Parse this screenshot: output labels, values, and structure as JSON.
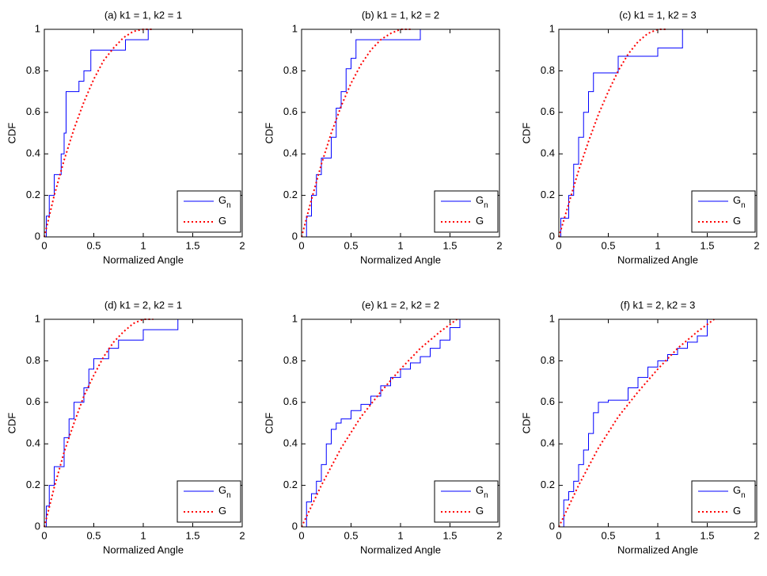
{
  "chart_data": [
    {
      "type": "line",
      "title": "(a) k1 = 1, k2 = 1",
      "xlabel": "Normalized Angle",
      "ylabel": "CDF",
      "xlim": [
        0,
        2
      ],
      "ylim": [
        0,
        1
      ],
      "xticks": [
        0,
        0.5,
        1,
        1.5,
        2
      ],
      "yticks": [
        0,
        0.2,
        0.4,
        0.6,
        0.8,
        1
      ],
      "legend": "lower right",
      "series": [
        {
          "name": "Gn",
          "color": "#0000ff",
          "style": "solid",
          "step": true,
          "x": [
            0,
            0.02,
            0.05,
            0.1,
            0.17,
            0.2,
            0.22,
            0.35,
            0.4,
            0.47,
            0.55,
            0.82,
            1.05,
            1.6
          ],
          "values": [
            0,
            0.1,
            0.2,
            0.3,
            0.4,
            0.5,
            0.7,
            0.75,
            0.8,
            0.9,
            0.9,
            0.95,
            1,
            1
          ]
        },
        {
          "name": "G",
          "color": "#ff0000",
          "style": "dotted",
          "step": false,
          "x": [
            0,
            0.1,
            0.2,
            0.3,
            0.4,
            0.5,
            0.6,
            0.7,
            0.8,
            0.9,
            1.0,
            1.1
          ],
          "values": [
            0,
            0.2,
            0.37,
            0.52,
            0.65,
            0.76,
            0.85,
            0.91,
            0.96,
            0.99,
            1,
            1
          ]
        }
      ]
    },
    {
      "type": "line",
      "title": "(b) k1 = 1, k2 = 2",
      "xlabel": "Normalized Angle",
      "ylabel": "CDF",
      "xlim": [
        0,
        2
      ],
      "ylim": [
        0,
        1
      ],
      "xticks": [
        0,
        0.5,
        1,
        1.5,
        2
      ],
      "yticks": [
        0,
        0.2,
        0.4,
        0.6,
        0.8,
        1
      ],
      "legend": "lower right",
      "series": [
        {
          "name": "Gn",
          "color": "#0000ff",
          "style": "solid",
          "step": true,
          "x": [
            0,
            0.05,
            0.1,
            0.15,
            0.2,
            0.3,
            0.35,
            0.4,
            0.45,
            0.5,
            0.55,
            1.2,
            1.6
          ],
          "values": [
            0,
            0.1,
            0.2,
            0.3,
            0.38,
            0.48,
            0.62,
            0.7,
            0.81,
            0.86,
            0.95,
            1,
            1
          ]
        },
        {
          "name": "G",
          "color": "#ff0000",
          "style": "dotted",
          "step": false,
          "x": [
            0,
            0.1,
            0.2,
            0.3,
            0.4,
            0.5,
            0.6,
            0.7,
            0.8,
            0.9,
            1.0,
            1.1
          ],
          "values": [
            0,
            0.18,
            0.35,
            0.5,
            0.63,
            0.74,
            0.83,
            0.9,
            0.95,
            0.98,
            1,
            1
          ]
        }
      ]
    },
    {
      "type": "line",
      "title": "(c) k1 = 1, k2 = 3",
      "xlabel": "Normalized Angle",
      "ylabel": "CDF",
      "xlim": [
        0,
        2
      ],
      "ylim": [
        0,
        1
      ],
      "xticks": [
        0,
        0.5,
        1,
        1.5,
        2
      ],
      "yticks": [
        0,
        0.2,
        0.4,
        0.6,
        0.8,
        1
      ],
      "legend": "lower right",
      "series": [
        {
          "name": "Gn",
          "color": "#0000ff",
          "style": "solid",
          "step": true,
          "x": [
            0,
            0.02,
            0.1,
            0.15,
            0.2,
            0.25,
            0.3,
            0.35,
            0.4,
            0.6,
            0.85,
            1.0,
            1.25,
            1.6
          ],
          "values": [
            0,
            0.09,
            0.2,
            0.35,
            0.48,
            0.6,
            0.7,
            0.79,
            0.79,
            0.87,
            0.87,
            0.91,
            1,
            1
          ]
        },
        {
          "name": "G",
          "color": "#ff0000",
          "style": "dotted",
          "step": false,
          "x": [
            0,
            0.1,
            0.2,
            0.3,
            0.4,
            0.5,
            0.6,
            0.7,
            0.8,
            0.9,
            1.0,
            1.1
          ],
          "values": [
            0,
            0.16,
            0.32,
            0.46,
            0.59,
            0.7,
            0.8,
            0.88,
            0.94,
            0.98,
            1,
            1
          ]
        }
      ]
    },
    {
      "type": "line",
      "title": "(d) k1 = 2, k2 = 1",
      "xlabel": "Normalized Angle",
      "ylabel": "CDF",
      "xlim": [
        0,
        2
      ],
      "ylim": [
        0,
        1
      ],
      "xticks": [
        0,
        0.5,
        1,
        1.5,
        2
      ],
      "yticks": [
        0,
        0.2,
        0.4,
        0.6,
        0.8,
        1
      ],
      "legend": "lower right",
      "series": [
        {
          "name": "Gn",
          "color": "#0000ff",
          "style": "solid",
          "step": true,
          "x": [
            0,
            0.02,
            0.05,
            0.1,
            0.2,
            0.25,
            0.3,
            0.4,
            0.45,
            0.5,
            0.65,
            0.75,
            1.0,
            1.35,
            1.6
          ],
          "values": [
            0,
            0.1,
            0.2,
            0.29,
            0.43,
            0.52,
            0.6,
            0.67,
            0.76,
            0.81,
            0.86,
            0.9,
            0.95,
            1,
            1
          ]
        },
        {
          "name": "G",
          "color": "#ff0000",
          "style": "dotted",
          "step": false,
          "x": [
            0,
            0.1,
            0.2,
            0.3,
            0.4,
            0.5,
            0.6,
            0.7,
            0.8,
            0.9,
            1.0,
            1.1
          ],
          "values": [
            0,
            0.19,
            0.36,
            0.5,
            0.63,
            0.73,
            0.82,
            0.89,
            0.94,
            0.98,
            1,
            1
          ]
        }
      ]
    },
    {
      "type": "line",
      "title": "(e) k1 = 2, k2 = 2",
      "xlabel": "Normalized Angle",
      "ylabel": "CDF",
      "xlim": [
        0,
        2
      ],
      "ylim": [
        0,
        1
      ],
      "xticks": [
        0,
        0.5,
        1,
        1.5,
        2
      ],
      "yticks": [
        0,
        0.2,
        0.4,
        0.6,
        0.8,
        1
      ],
      "legend": "lower right",
      "series": [
        {
          "name": "Gn",
          "color": "#0000ff",
          "style": "solid",
          "step": true,
          "x": [
            0,
            0.05,
            0.1,
            0.15,
            0.2,
            0.25,
            0.3,
            0.35,
            0.4,
            0.5,
            0.6,
            0.7,
            0.8,
            0.9,
            1.0,
            1.1,
            1.2,
            1.3,
            1.4,
            1.5,
            1.6
          ],
          "values": [
            0,
            0.12,
            0.16,
            0.22,
            0.3,
            0.4,
            0.47,
            0.5,
            0.52,
            0.56,
            0.59,
            0.63,
            0.68,
            0.72,
            0.76,
            0.79,
            0.82,
            0.86,
            0.9,
            0.96,
            1
          ]
        },
        {
          "name": "G",
          "color": "#ff0000",
          "style": "dotted",
          "step": false,
          "x": [
            0,
            0.2,
            0.4,
            0.6,
            0.8,
            1.0,
            1.2,
            1.4,
            1.57
          ],
          "values": [
            0,
            0.2,
            0.38,
            0.53,
            0.65,
            0.76,
            0.86,
            0.94,
            1
          ]
        }
      ]
    },
    {
      "type": "line",
      "title": "(f) k1 = 2, k2 = 3",
      "xlabel": "Normalized Angle",
      "ylabel": "CDF",
      "xlim": [
        0,
        2
      ],
      "ylim": [
        0,
        1
      ],
      "xticks": [
        0,
        0.5,
        1,
        1.5,
        2
      ],
      "yticks": [
        0,
        0.2,
        0.4,
        0.6,
        0.8,
        1
      ],
      "legend": "lower right",
      "series": [
        {
          "name": "Gn",
          "color": "#0000ff",
          "style": "solid",
          "step": true,
          "x": [
            0,
            0.05,
            0.1,
            0.15,
            0.2,
            0.25,
            0.3,
            0.35,
            0.4,
            0.5,
            0.7,
            0.8,
            0.9,
            1.0,
            1.1,
            1.2,
            1.3,
            1.4,
            1.5,
            1.55
          ],
          "values": [
            0,
            0.13,
            0.17,
            0.22,
            0.3,
            0.37,
            0.45,
            0.55,
            0.6,
            0.61,
            0.67,
            0.72,
            0.77,
            0.8,
            0.83,
            0.86,
            0.89,
            0.92,
            1,
            1
          ]
        },
        {
          "name": "G",
          "color": "#ff0000",
          "style": "dotted",
          "step": false,
          "x": [
            0,
            0.2,
            0.4,
            0.6,
            0.8,
            1.0,
            1.2,
            1.4,
            1.57
          ],
          "values": [
            0,
            0.2,
            0.38,
            0.53,
            0.65,
            0.76,
            0.86,
            0.94,
            1
          ]
        }
      ]
    }
  ]
}
